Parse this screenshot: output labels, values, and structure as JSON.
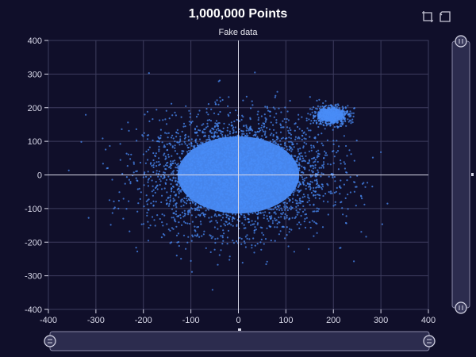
{
  "header": {
    "title": "1,000,000 Points",
    "subtitle": "Fake data"
  },
  "toolbox": {
    "zoom_icon": "area-zoom-icon",
    "reset_icon": "zoom-reset-icon"
  },
  "colors": {
    "background": "#100f2a",
    "points": "#4a8cf7",
    "grid": "#3d3c5e",
    "axis": "#d8d8e8",
    "datazoom_bg": "#2c2c4e",
    "datazoom_border": "#8a8aa8"
  },
  "chart_data": {
    "type": "scatter",
    "title": "1,000,000 Points",
    "subtitle": "Fake data",
    "point_count": 1000000,
    "xlim": [
      -400,
      400
    ],
    "ylim": [
      -400,
      400
    ],
    "x_ticks": [
      "-400",
      "-300",
      "-200",
      "-100",
      "0",
      "100",
      "200",
      "300",
      "400"
    ],
    "y_ticks": [
      "400",
      "300",
      "200",
      "100",
      "0",
      "-100",
      "-200",
      "-300",
      "-400"
    ],
    "grid": true,
    "clusters": [
      {
        "center": [
          0,
          0
        ],
        "spread": [
          95,
          85
        ],
        "share": 0.88
      },
      {
        "center": [
          195,
          178
        ],
        "spread": [
          20,
          15
        ],
        "share": 0.12
      }
    ],
    "datazoom": {
      "x_range": [
        0,
        100
      ],
      "y_range": [
        0,
        100
      ]
    }
  }
}
